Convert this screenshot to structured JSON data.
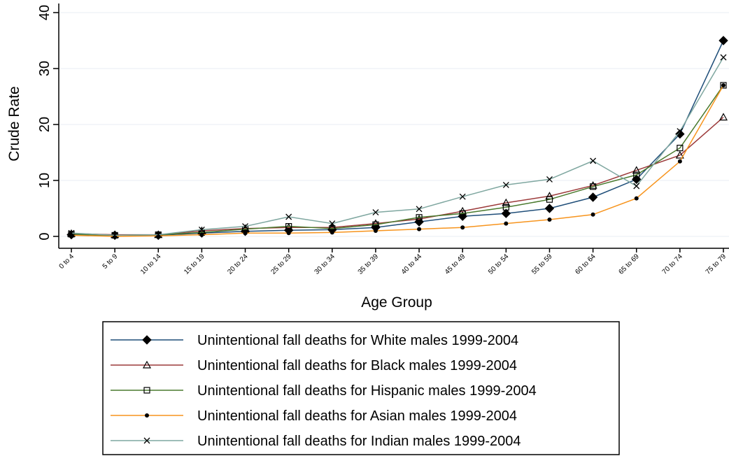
{
  "chart_data": {
    "type": "line",
    "title": "",
    "xlabel": "Age Group",
    "ylabel": "Crude Rate",
    "ylim": [
      0,
      40
    ],
    "yticks": [
      0,
      10,
      20,
      30,
      40
    ],
    "grid": true,
    "legend_position": "bottom",
    "categories": [
      "0 to 4",
      "5 to 9",
      "10 to 14",
      "15 to 19",
      "20 to 24",
      "25 to 29",
      "30 to 34",
      "35 to 39",
      "40 to 44",
      "45 to 49",
      "50 to 54",
      "55 to 59",
      "60 to 64",
      "65 to 69",
      "70 to 74",
      "75 to 79"
    ],
    "series": [
      {
        "name": "Unintentional fall deaths for White males 1999-2004",
        "color": "#1f4e79",
        "marker": "diamond-filled",
        "values": [
          0.3,
          0.2,
          0.2,
          0.6,
          0.9,
          1.1,
          1.2,
          1.6,
          2.6,
          3.6,
          4.1,
          5.0,
          7.0,
          10.2,
          18.3,
          35.0
        ]
      },
      {
        "name": "Unintentional fall deaths for Black males 1999-2004",
        "color": "#9c3a3a",
        "marker": "triangle-open",
        "values": [
          0.5,
          0.3,
          0.3,
          1.0,
          1.4,
          1.6,
          1.6,
          2.3,
          3.1,
          4.5,
          6.0,
          7.2,
          9.1,
          11.8,
          14.5,
          21.3
        ]
      },
      {
        "name": "Unintentional fall deaths for Hispanic males 1999-2004",
        "color": "#4a7a2e",
        "marker": "square-open",
        "values": [
          0.4,
          0.2,
          0.3,
          0.7,
          1.3,
          1.8,
          1.4,
          2.1,
          3.4,
          4.1,
          5.2,
          6.6,
          8.9,
          11.0,
          15.8,
          27.0
        ]
      },
      {
        "name": "Unintentional fall deaths for Asian males 1999-2004",
        "color": "#f7941d",
        "marker": "dot-filled",
        "values": [
          0.2,
          0.0,
          0.1,
          0.3,
          0.6,
          0.6,
          0.7,
          1.0,
          1.3,
          1.6,
          2.3,
          3.0,
          3.9,
          6.8,
          13.4,
          27.0
        ]
      },
      {
        "name": "Unintentional fall deaths for Indian males 1999-2004",
        "color": "#7fa7a0",
        "marker": "x",
        "values": [
          0.6,
          0.2,
          0.3,
          1.2,
          1.8,
          3.5,
          2.3,
          4.3,
          4.9,
          7.1,
          9.2,
          10.2,
          13.5,
          9.0,
          18.8,
          32.0
        ]
      }
    ]
  }
}
